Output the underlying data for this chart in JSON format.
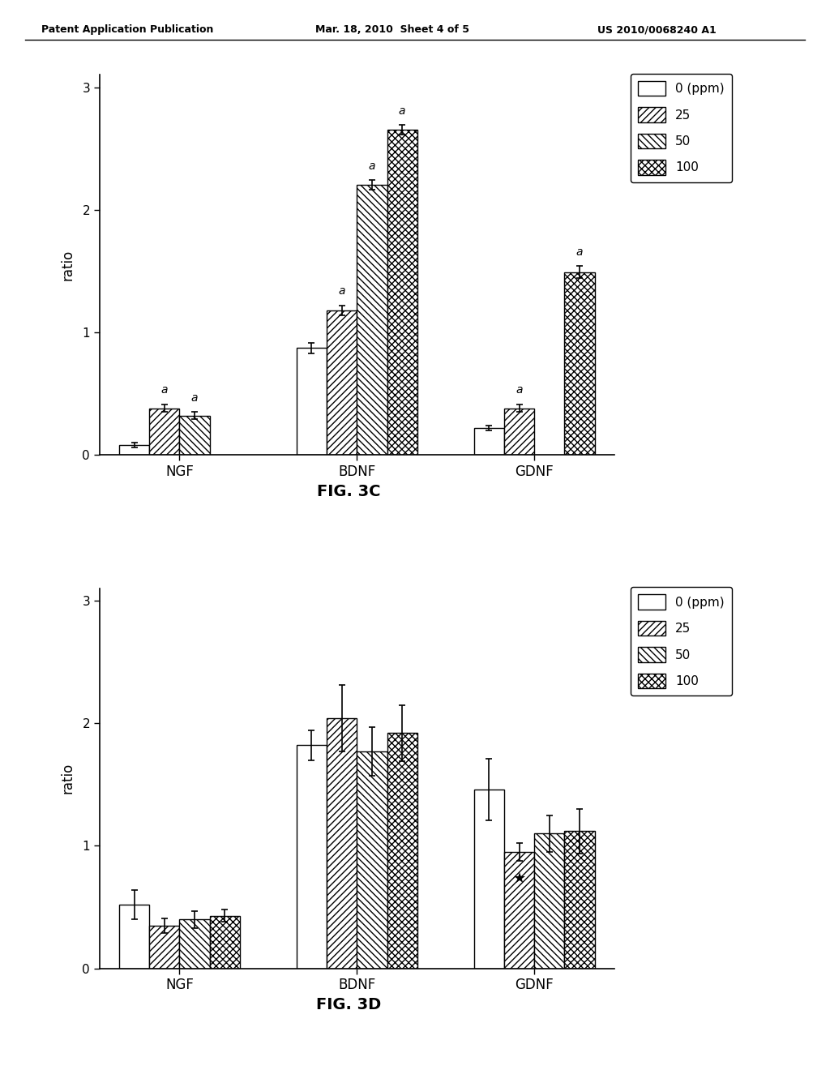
{
  "fig3c": {
    "groups": [
      "NGF",
      "BDNF",
      "GDNF"
    ],
    "series_labels": [
      "0 (ppm)",
      "25",
      "50",
      "100"
    ],
    "values": [
      [
        0.08,
        0.87,
        0.22
      ],
      [
        0.38,
        1.18,
        0.38
      ],
      [
        0.32,
        2.2,
        null
      ],
      [
        null,
        2.65,
        1.49
      ]
    ],
    "errors": [
      [
        0.02,
        0.04,
        0.02
      ],
      [
        0.03,
        0.04,
        0.03
      ],
      [
        0.03,
        0.04,
        null
      ],
      [
        null,
        0.04,
        0.05
      ]
    ],
    "annotations": [
      [
        null,
        null,
        null
      ],
      [
        "a",
        "a",
        "a"
      ],
      [
        "a",
        "a",
        null
      ],
      [
        null,
        "a",
        "a"
      ]
    ],
    "ylabel": "ratio",
    "ylim": [
      0,
      3.1
    ],
    "yticks": [
      0,
      1,
      2,
      3
    ],
    "fig_label": "FIG. 3C"
  },
  "fig3d": {
    "groups": [
      "NGF",
      "BDNF",
      "GDNF"
    ],
    "series_labels": [
      "0 (ppm)",
      "25",
      "50",
      "100"
    ],
    "values": [
      [
        0.52,
        1.82,
        1.46
      ],
      [
        0.35,
        2.04,
        0.95
      ],
      [
        0.4,
        1.77,
        1.1
      ],
      [
        0.43,
        1.92,
        1.12
      ]
    ],
    "errors": [
      [
        0.12,
        0.12,
        0.25
      ],
      [
        0.06,
        0.27,
        0.07
      ],
      [
        0.07,
        0.2,
        0.15
      ],
      [
        0.05,
        0.23,
        0.18
      ]
    ],
    "star_annotation": {
      "group_idx": 2,
      "series_idx": 1
    },
    "ylabel": "ratio",
    "ylim": [
      0,
      3.1
    ],
    "yticks": [
      0,
      1,
      2,
      3
    ],
    "fig_label": "FIG. 3D"
  },
  "hatch_patterns": [
    "",
    "////",
    "\\\\\\\\",
    "xxxx"
  ],
  "bar_colors": [
    "white",
    "white",
    "white",
    "white"
  ],
  "bar_edgecolor": "black",
  "legend_labels": [
    "0 (ppm)",
    "25",
    "50",
    "100"
  ],
  "header_left": "Patent Application Publication",
  "header_mid": "Mar. 18, 2010  Sheet 4 of 5",
  "header_right": "US 2010/0068240 A1"
}
